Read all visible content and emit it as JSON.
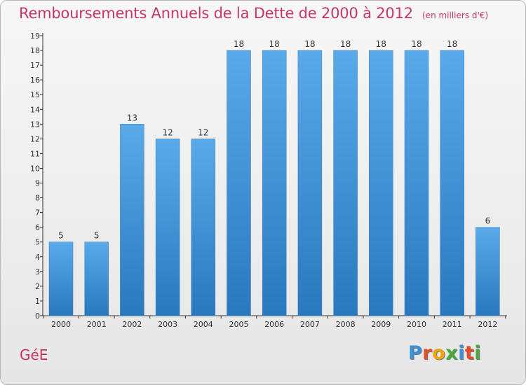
{
  "title": "Remboursements Annuels de la Dette de 2000 à 2012",
  "unit": "(en milliers d'€)",
  "commune": "GéE",
  "logo": {
    "text": "Proxiti",
    "letter_colors": [
      "#3b8fd9",
      "#e24b28",
      "#f0a30a",
      "#49a83d",
      "#3b8fd9",
      "#e24b28",
      "#49a83d"
    ]
  },
  "colors": {
    "accent": "#c8365e",
    "bar_top": "#5aaaea",
    "bar_bottom": "#2a78bd",
    "axis": "#333333"
  },
  "chart_data": {
    "type": "bar",
    "categories": [
      "2000",
      "2001",
      "2002",
      "2003",
      "2004",
      "2005",
      "2006",
      "2007",
      "2008",
      "2009",
      "2010",
      "2011",
      "2012"
    ],
    "values": [
      5,
      5,
      13,
      12,
      12,
      18,
      18,
      18,
      18,
      18,
      18,
      18,
      6
    ],
    "data_labels": [
      "5",
      "5",
      "13",
      "12",
      "12",
      "18",
      "18",
      "18",
      "18",
      "18",
      "18",
      "18",
      "6"
    ],
    "y_ticks": [
      "0",
      "1",
      "2",
      "3",
      "4",
      "5",
      "6",
      "7",
      "8",
      "9",
      "10",
      "11",
      "12",
      "13",
      "14",
      "15",
      "16",
      "17",
      "18",
      "19"
    ],
    "ylim": [
      0,
      19
    ],
    "grid": false,
    "legend": "none"
  }
}
